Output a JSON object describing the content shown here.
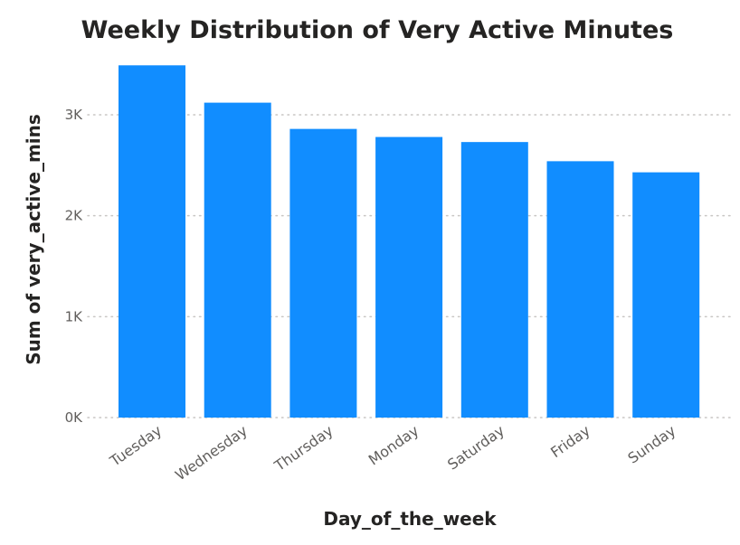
{
  "chart_data": {
    "type": "bar",
    "title": "Weekly Distribution of Very Active Minutes",
    "xlabel": "Day_of_the_week",
    "ylabel": "Sum of very_active_mins",
    "categories": [
      "Tuesday",
      "Wednesday",
      "Thursday",
      "Monday",
      "Saturday",
      "Friday",
      "Sunday"
    ],
    "values": [
      3490,
      3120,
      2860,
      2780,
      2730,
      2540,
      2430
    ],
    "ylim": [
      0,
      3000
    ],
    "yticks": [
      0,
      1000,
      2000,
      3000
    ],
    "ytick_labels": [
      "0K",
      "1K",
      "2K",
      "3K"
    ],
    "grid": true,
    "bar_color": "#118dff"
  }
}
